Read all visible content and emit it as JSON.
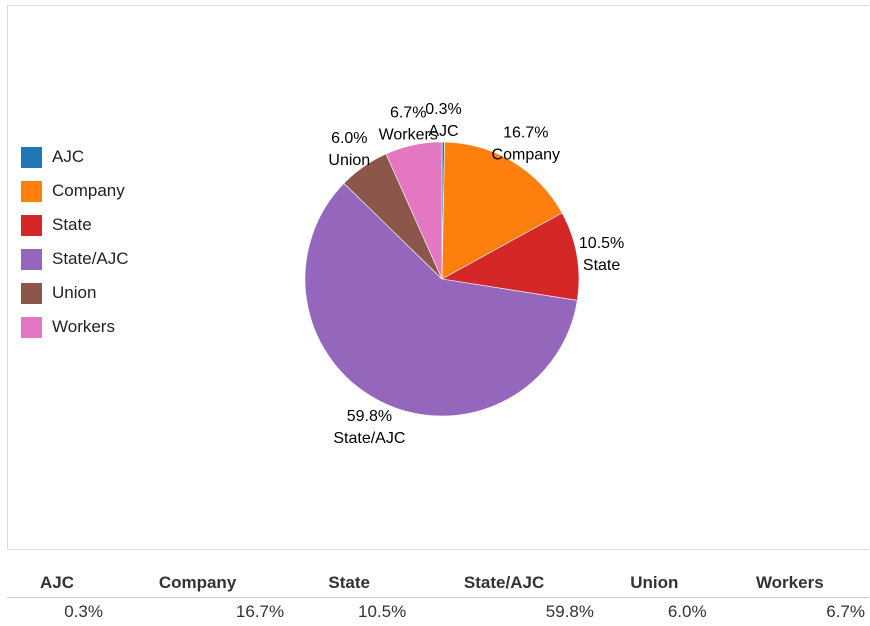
{
  "chart_data": {
    "type": "pie",
    "title": "",
    "slices": [
      {
        "label": "AJC",
        "value": 0.3,
        "value_label": "0.3%",
        "color": "#1f77b4"
      },
      {
        "label": "Company",
        "value": 16.7,
        "value_label": "16.7%",
        "color": "#ff7f0e"
      },
      {
        "label": "State",
        "value": 10.5,
        "value_label": "10.5%",
        "color": "#d62728"
      },
      {
        "label": "State/AJC",
        "value": 59.8,
        "value_label": "59.8%",
        "color": "#9467bd"
      },
      {
        "label": "Union",
        "value": 6.0,
        "value_label": "6.0%",
        "color": "#8c564b"
      },
      {
        "label": "Workers",
        "value": 6.7,
        "value_label": "6.7%",
        "color": "#e377c2"
      }
    ],
    "legend_position": "left"
  },
  "table": {
    "headers": [
      "AJC",
      "Company",
      "State",
      "State/AJC",
      "Union",
      "Workers"
    ],
    "values": [
      "0.3%",
      "16.7%",
      "10.5%",
      "59.8%",
      "6.0%",
      "6.7%"
    ]
  }
}
